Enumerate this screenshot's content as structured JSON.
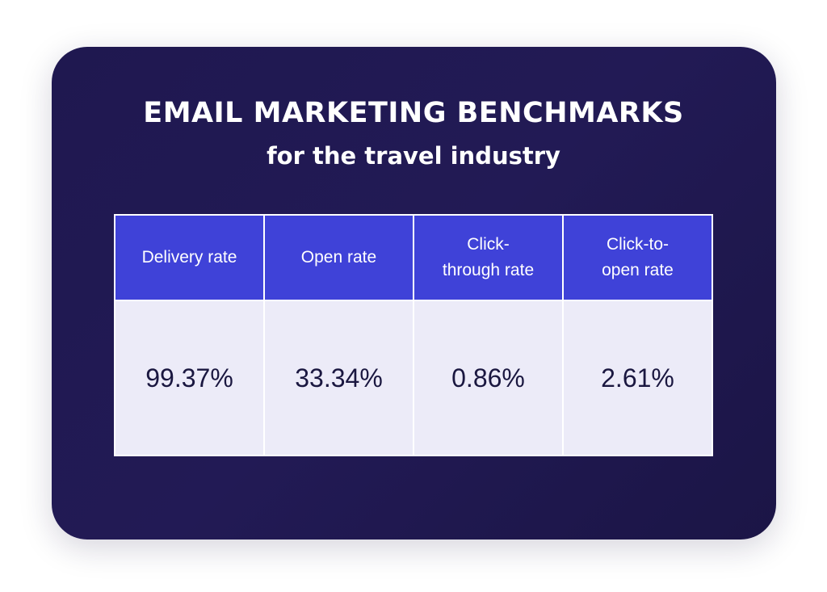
{
  "chart_data": {
    "type": "table",
    "title": "EMAIL MARKETING BENCHMARKS",
    "subtitle": "for the travel industry",
    "columns": [
      "Delivery rate",
      "Open rate",
      "Click-\nthrough rate",
      "Click-to-\nopen rate"
    ],
    "rows": [
      [
        "99.37%",
        "33.34%",
        "0.86%",
        "2.61%"
      ]
    ]
  },
  "colors": {
    "card_background": "#211a52",
    "header_background": "#3f42d8",
    "cell_background": "#ecebf8",
    "header_text": "#ffffff",
    "cell_text": "#1a1740"
  }
}
